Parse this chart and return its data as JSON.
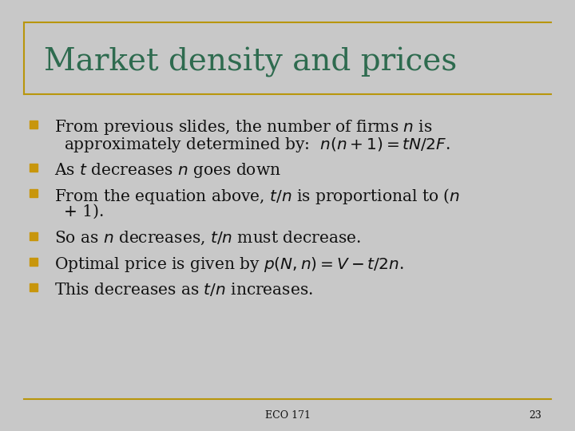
{
  "title": "Market density and prices",
  "title_color": "#2E6B4F",
  "background_color": "#C8C8C8",
  "border_color": "#B8960C",
  "bullet_color": "#C8960C",
  "text_color": "#111111",
  "footer_text": "ECO 171",
  "page_number": "23",
  "title_fontsize": 28,
  "body_fontsize": 14.5,
  "footer_fontsize": 9,
  "bullets": [
    {
      "lines": [
        "From previous slides, the number of firms $n$ is",
        "approximately determined by:  $n(n + 1) = tN/2F$."
      ]
    },
    {
      "lines": [
        "As $t$ decreases $n$ goes down"
      ]
    },
    {
      "lines": [
        "From the equation above, $t/n$ is proportional to ($n$",
        "+ 1)."
      ]
    },
    {
      "lines": [
        "So as $n$ decreases, $t/n$ must decrease."
      ]
    },
    {
      "lines": [
        "Optimal price is given by $p(N,n) = V - t/2n$."
      ]
    },
    {
      "lines": [
        "This decreases as $t/n$ increases."
      ]
    }
  ]
}
